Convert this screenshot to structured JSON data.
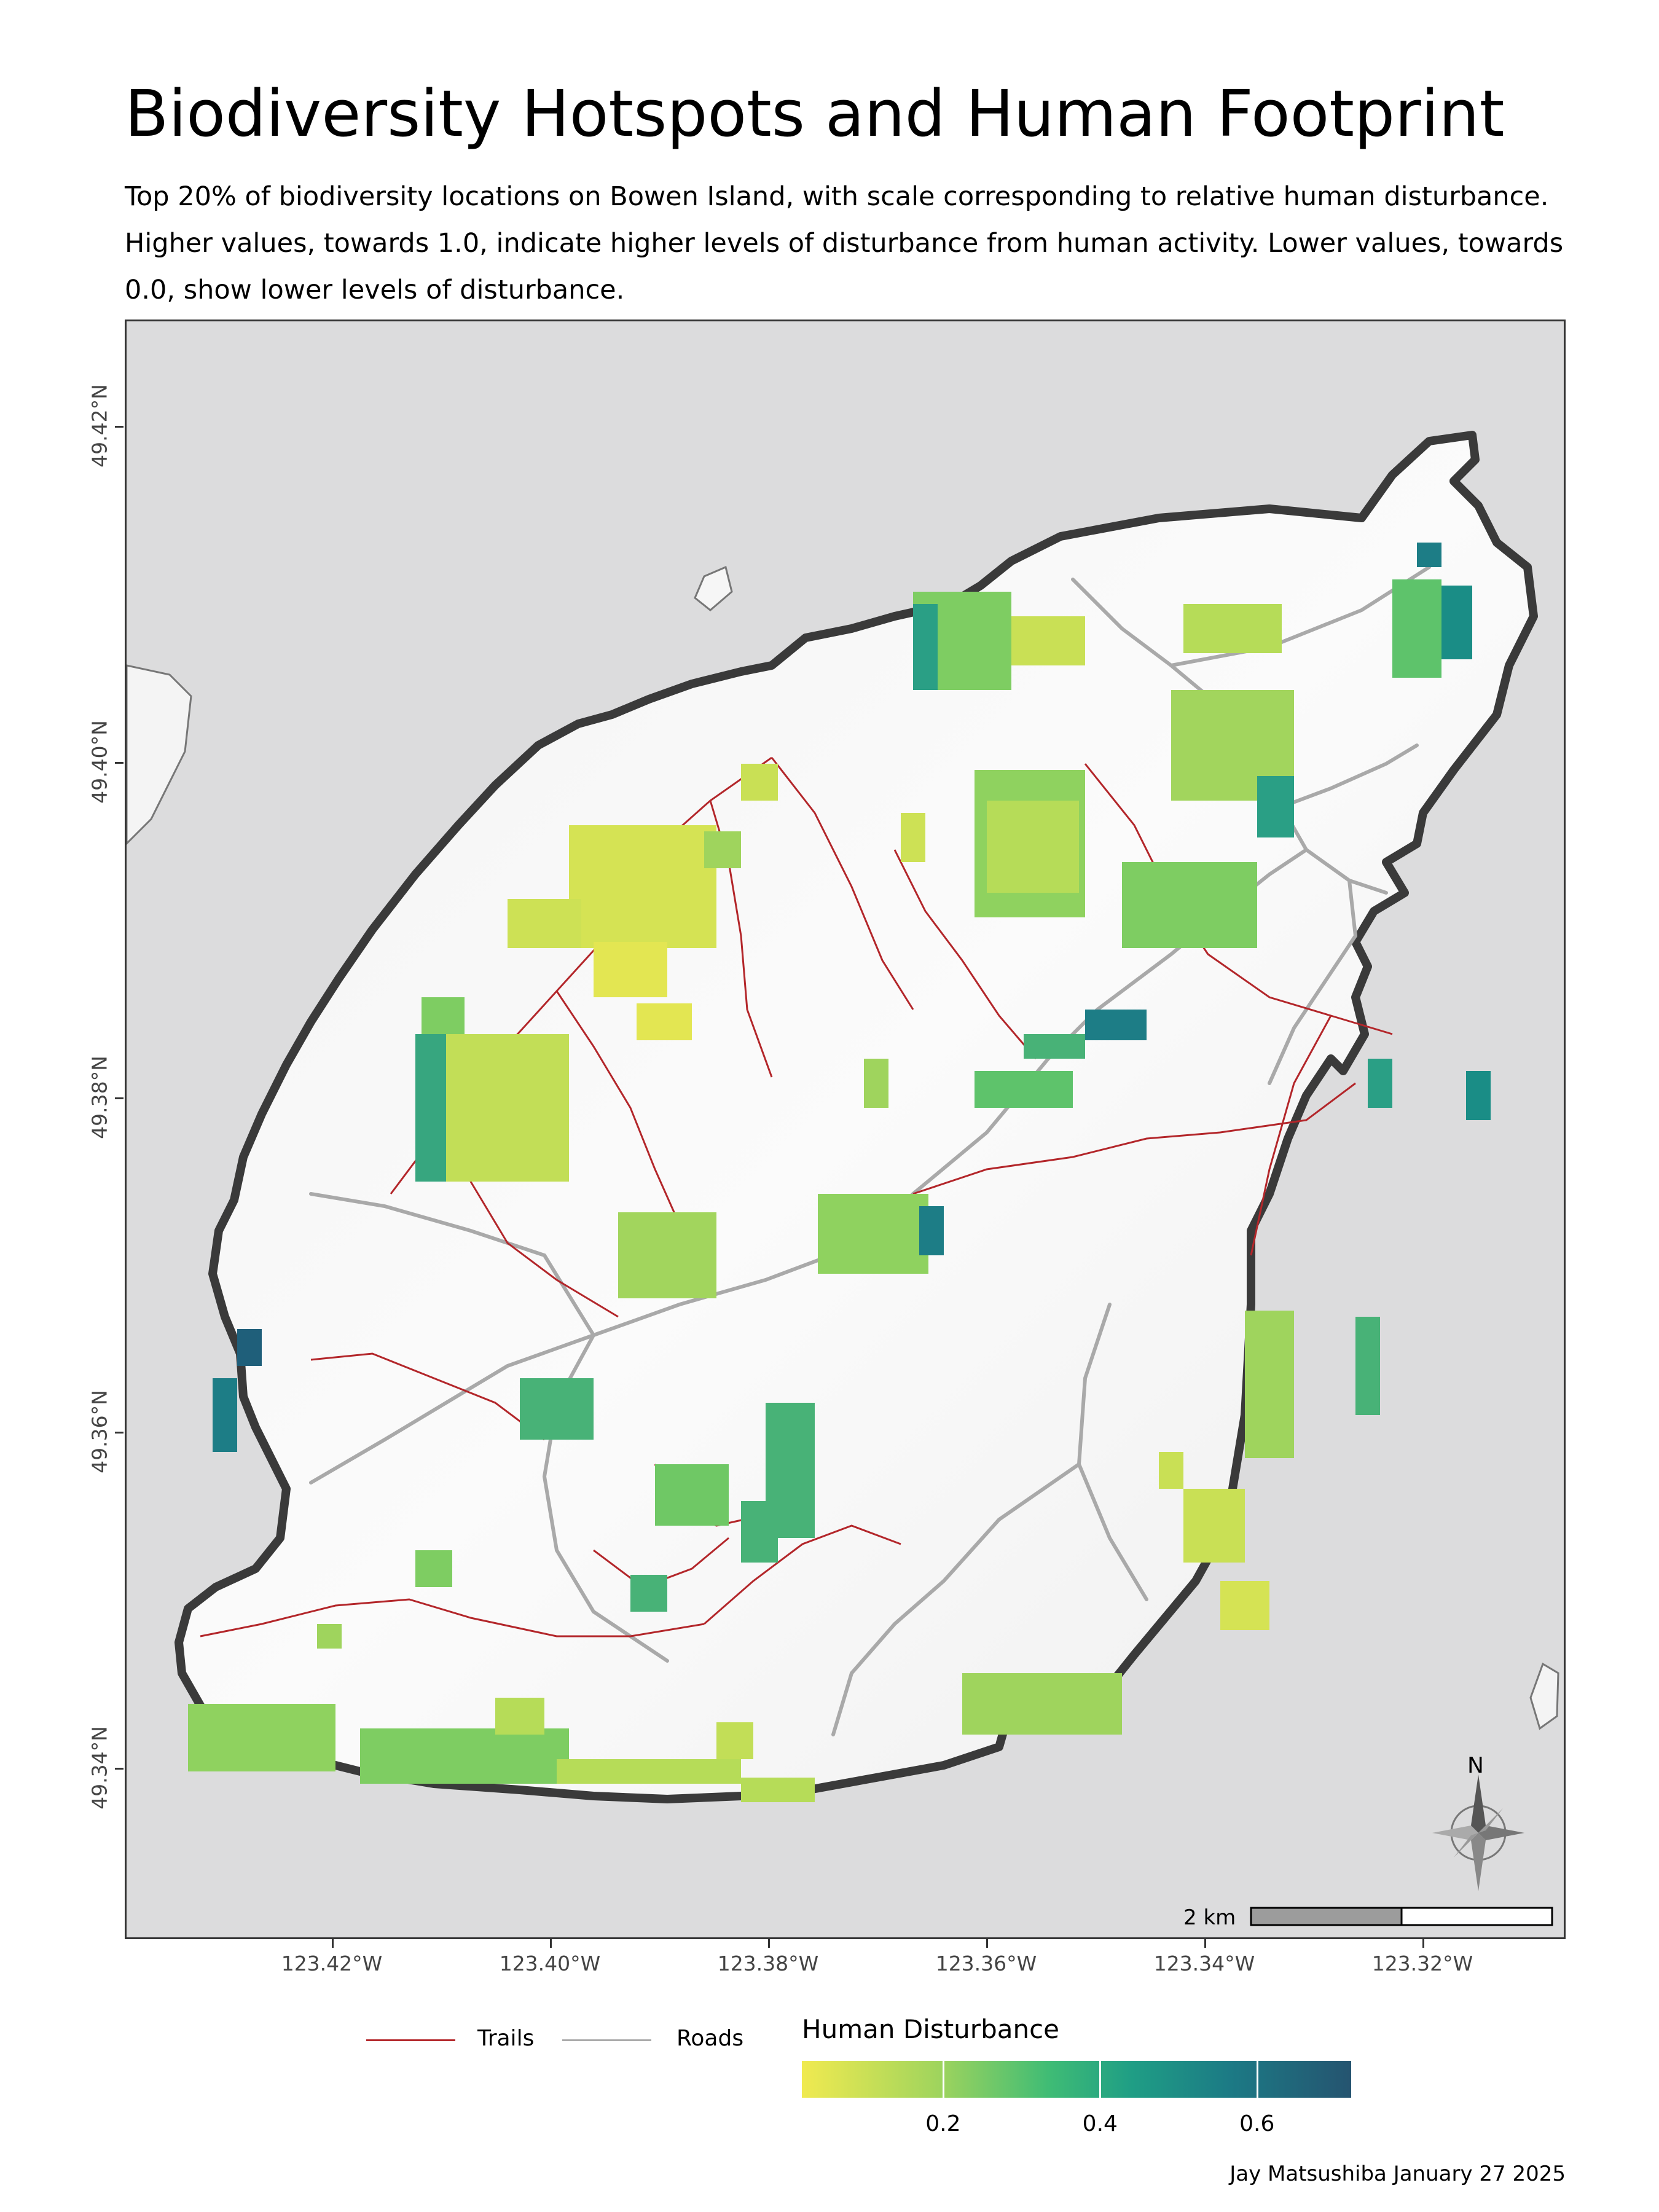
{
  "title": "Biodiversity Hotspots and Human Footprint",
  "subtitle": "Top 20% of biodiversity locations on Bowen Island, with scale corresponding to relative human disturbance. Higher values, towards 1.0, indicate higher levels of disturbance from human activity. Lower values, towards 0.0, show lower levels of disturbance.",
  "axes": {
    "x_ticks": [
      "123.42°W",
      "123.40°W",
      "123.38°W",
      "123.36°W",
      "123.34°W",
      "123.32°W"
    ],
    "y_ticks": [
      "49.42°N",
      "49.40°N",
      "49.38°N",
      "49.36°N",
      "49.34°N"
    ]
  },
  "map": {
    "north_label": "N",
    "scale_bar_label": "2 km"
  },
  "legend": {
    "trails_label": "Trails",
    "roads_label": "Roads",
    "trail_color": "#b3262a",
    "road_color": "#a9a9a9",
    "colorbar_title": "Human Disturbance",
    "colorbar_ticks": [
      "0.2",
      "0.4",
      "0.6"
    ],
    "colorbar_tick_values": [
      0.2,
      0.4,
      0.6
    ],
    "colorbar_range": [
      0.02,
      0.72
    ]
  },
  "credit": "Jay Matsushiba January 27 2025"
}
